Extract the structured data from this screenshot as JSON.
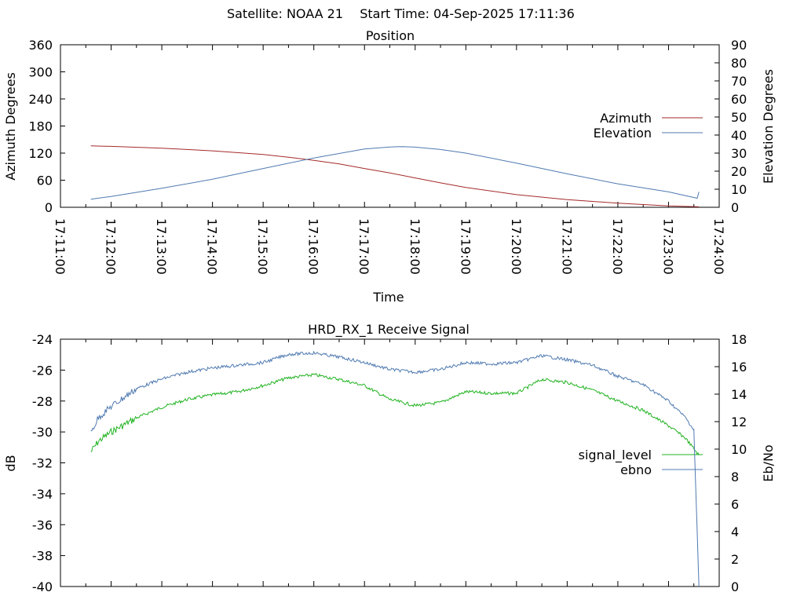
{
  "header": {
    "satellite": "Satellite: NOAA 21",
    "start_time": "Start Time: 04-Sep-2025 17:11:36"
  },
  "chart_data": [
    {
      "type": "line",
      "title": "Position",
      "xlabel": "Time",
      "ylabel": "Azimuth Degrees",
      "y2label": "Elevation Degrees",
      "xlim": [
        "17:11:00",
        "17:24:00"
      ],
      "ylim": [
        0,
        360
      ],
      "y2lim": [
        0,
        90
      ],
      "x_ticks": [
        "17:11:00",
        "17:12:00",
        "17:13:00",
        "17:14:00",
        "17:15:00",
        "17:16:00",
        "17:17:00",
        "17:18:00",
        "17:19:00",
        "17:20:00",
        "17:21:00",
        "17:22:00",
        "17:23:00",
        "17:24:00"
      ],
      "y_ticks": [
        "0",
        "60",
        "120",
        "180",
        "240",
        "300",
        "360"
      ],
      "y2_ticks": [
        "0",
        "10",
        "20",
        "30",
        "40",
        "50",
        "60",
        "70",
        "80",
        "90"
      ],
      "legend_position": "right",
      "series": [
        {
          "name": "Azimuth",
          "axis": "y",
          "color": "#a52a2a",
          "x": [
            "17:11:36",
            "17:12:00",
            "17:13:00",
            "17:14:00",
            "17:15:00",
            "17:15:30",
            "17:16:00",
            "17:16:30",
            "17:17:00",
            "17:17:30",
            "17:18:00",
            "17:18:30",
            "17:19:00",
            "17:20:00",
            "17:21:00",
            "17:22:00",
            "17:23:00",
            "17:23:36"
          ],
          "values": [
            136,
            135,
            131,
            125,
            117,
            111,
            104,
            96,
            86,
            76,
            65,
            54,
            44,
            28,
            17,
            9,
            3,
            1
          ]
        },
        {
          "name": "Elevation",
          "axis": "y2",
          "color": "#4f7ab0",
          "x": [
            "17:11:36",
            "17:12:00",
            "17:13:00",
            "17:14:00",
            "17:15:00",
            "17:16:00",
            "17:17:00",
            "17:17:30",
            "17:17:45",
            "17:18:00",
            "17:18:30",
            "17:19:00",
            "17:20:00",
            "17:21:00",
            "17:22:00",
            "17:23:00",
            "17:23:34",
            "17:23:36"
          ],
          "values": [
            4.5,
            6,
            10.5,
            15.5,
            21.5,
            27.3,
            32.3,
            33.4,
            33.6,
            33.3,
            32,
            30,
            24.5,
            18.5,
            13,
            8.5,
            5,
            8.5
          ]
        }
      ]
    },
    {
      "type": "line",
      "title": "HRD_RX_1 Receive Signal",
      "xlabel": "",
      "ylabel": "dB",
      "y2label": "Eb/No",
      "xlim": [
        "17:11:00",
        "17:24:00"
      ],
      "ylim": [
        -40,
        -24
      ],
      "y2lim": [
        0,
        18
      ],
      "y_ticks": [
        "-24",
        "-26",
        "-28",
        "-30",
        "-32",
        "-34",
        "-36",
        "-38",
        "-40"
      ],
      "y2_ticks": [
        "18",
        "16",
        "14",
        "12",
        "10",
        "8",
        "6",
        "4",
        "2",
        "0"
      ],
      "legend_position": "right",
      "series": [
        {
          "name": "signal_level",
          "axis": "y",
          "color": "#22b322",
          "x": [
            "17:11:36",
            "17:11:45",
            "17:12:00",
            "17:12:30",
            "17:13:00",
            "17:13:30",
            "17:14:00",
            "17:14:30",
            "17:15:00",
            "17:15:30",
            "17:16:00",
            "17:16:30",
            "17:17:00",
            "17:17:30",
            "17:18:00",
            "17:18:30",
            "17:19:00",
            "17:19:30",
            "17:20:00",
            "17:20:30",
            "17:21:00",
            "17:21:30",
            "17:22:00",
            "17:22:30",
            "17:23:00",
            "17:23:20",
            "17:23:36"
          ],
          "values": [
            -31.3,
            -30.6,
            -30.0,
            -29.1,
            -28.4,
            -27.9,
            -27.6,
            -27.4,
            -27.0,
            -26.5,
            -26.3,
            -26.6,
            -27.0,
            -27.9,
            -28.3,
            -28.1,
            -27.4,
            -27.5,
            -27.5,
            -26.6,
            -26.8,
            -27.3,
            -28.0,
            -28.6,
            -29.6,
            -30.4,
            -31.5
          ]
        },
        {
          "name": "ebno",
          "axis": "y2",
          "color": "#4f7ab0",
          "x": [
            "17:11:36",
            "17:11:45",
            "17:12:00",
            "17:12:30",
            "17:13:00",
            "17:13:30",
            "17:14:00",
            "17:14:30",
            "17:15:00",
            "17:15:30",
            "17:16:00",
            "17:16:30",
            "17:17:00",
            "17:17:30",
            "17:18:00",
            "17:18:30",
            "17:19:00",
            "17:19:30",
            "17:20:00",
            "17:20:30",
            "17:21:00",
            "17:21:30",
            "17:22:00",
            "17:22:30",
            "17:23:00",
            "17:23:20",
            "17:23:30",
            "17:23:36"
          ],
          "values": [
            11.2,
            12.3,
            13.1,
            14.4,
            15.1,
            15.6,
            15.9,
            16.1,
            16.3,
            16.9,
            17.0,
            16.7,
            16.3,
            15.8,
            15.6,
            15.8,
            16.3,
            16.2,
            16.3,
            16.8,
            16.5,
            16.1,
            15.3,
            14.7,
            13.5,
            12.3,
            11.4,
            0
          ]
        }
      ]
    }
  ]
}
